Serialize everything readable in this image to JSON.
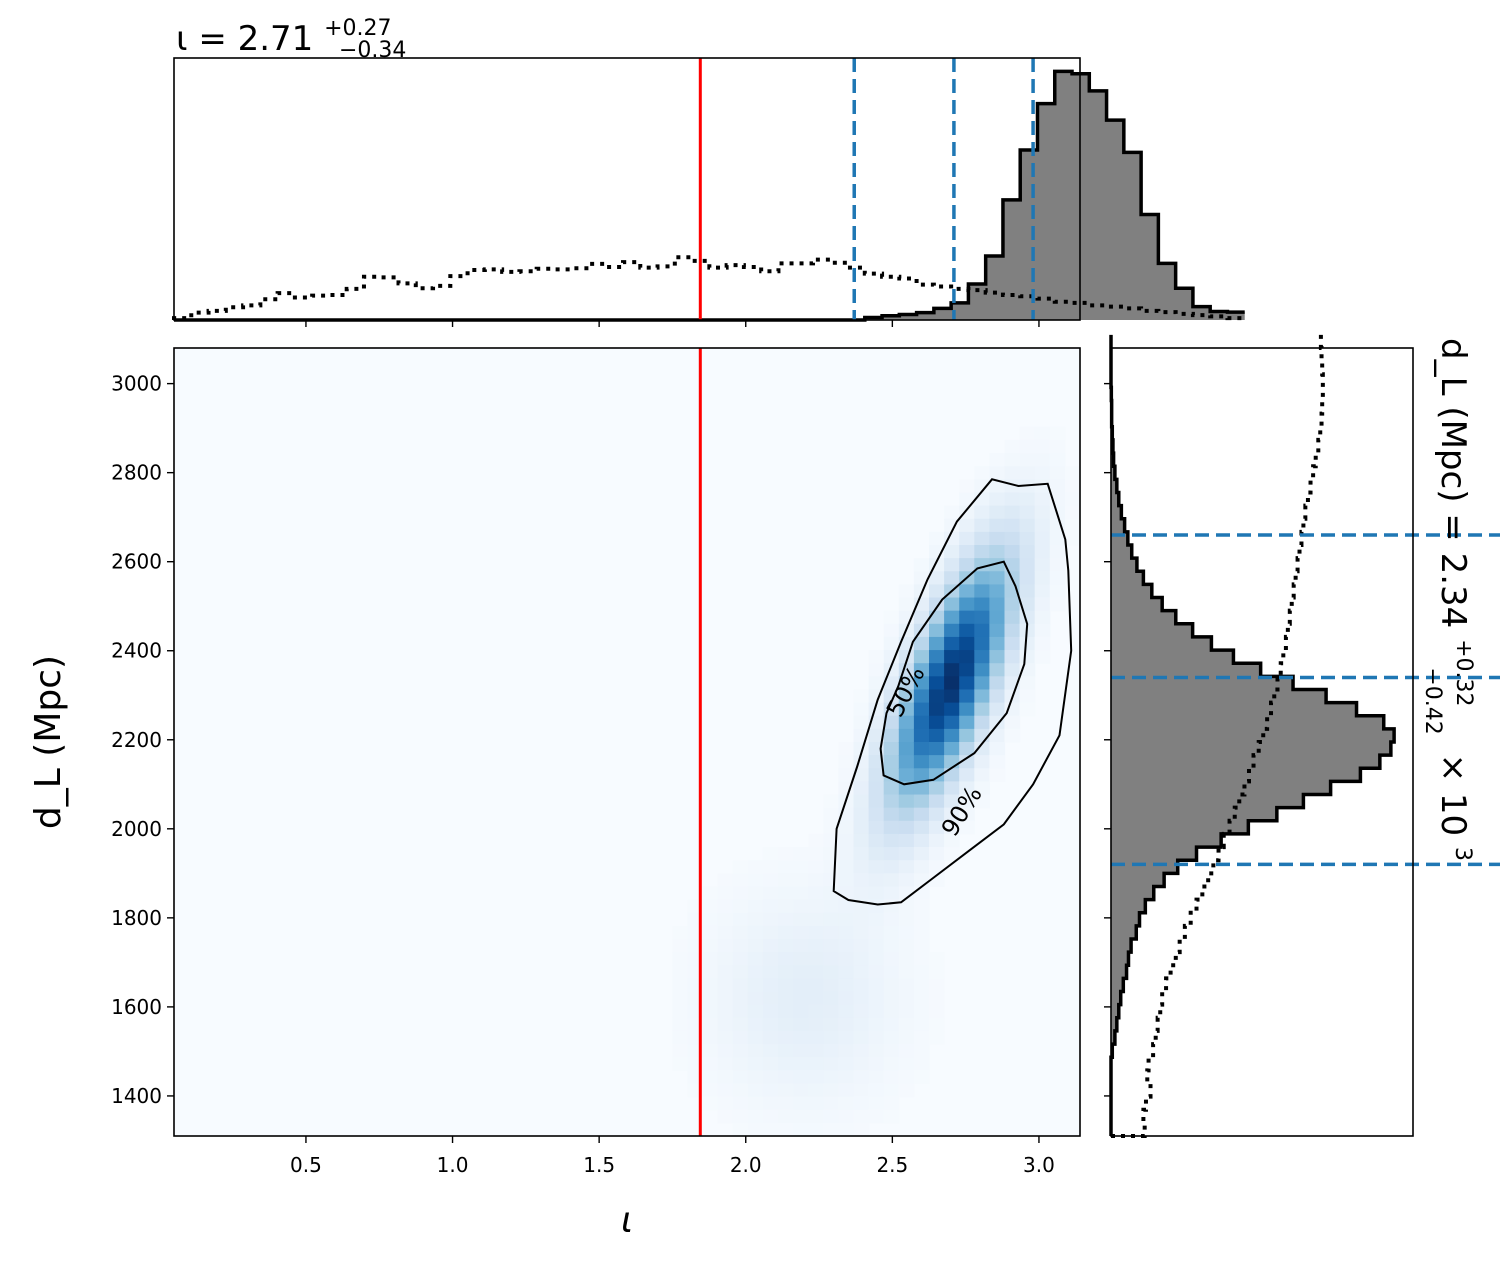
{
  "chart_data": [
    {
      "type": "histogram",
      "panel": "top-marginal",
      "title": {
        "main": "ι = 2.71",
        "sup": "+0.27",
        "sub": "−0.34"
      },
      "xlim": [
        0.05,
        3.14
      ],
      "x_ticks": [
        0.5,
        1.0,
        1.5,
        2.0,
        2.5,
        3.0
      ],
      "bins": {
        "start": 0.05,
        "width": 0.0589
      },
      "series": [
        {
          "name": "",
          "style": "filled-step",
          "color": "#808080",
          "edge": "#000000",
          "counts": [
            0,
            0,
            0,
            0,
            0,
            0,
            0,
            0,
            0,
            0,
            0,
            0,
            0,
            0,
            0,
            0,
            0,
            0,
            0,
            0,
            0,
            0,
            0,
            0,
            0,
            0,
            0,
            0,
            0,
            0,
            0,
            0,
            0,
            0,
            0,
            0,
            0,
            0,
            0,
            0,
            0.4,
            0.7,
            0.9,
            1.2,
            1.9,
            2.8,
            5.9,
            10.5,
            19.7,
            27.9,
            35.5,
            40.8,
            40.4,
            37.6,
            32.8,
            27.5,
            17.3,
            9.3,
            5.2,
            2.2,
            1.4,
            1.3
          ]
        },
        {
          "name": "",
          "style": "dotted-step",
          "color": "#000000",
          "counts": [
            0.3,
            1.2,
            1.5,
            2.1,
            2.4,
            3.4,
            4.4,
            3.7,
            4.0,
            4.1,
            5.1,
            7.1,
            7.0,
            6.0,
            5.2,
            5.6,
            7.2,
            8.2,
            8.3,
            7.9,
            8.0,
            8.4,
            8.3,
            8.5,
            9.2,
            8.7,
            9.5,
            8.6,
            8.8,
            10.3,
            9.7,
            8.6,
            9.0,
            8.7,
            8.0,
            9.3,
            9.3,
            9.9,
            9.4,
            8.6,
            7.6,
            7.1,
            6.8,
            5.8,
            5.5,
            5.1,
            4.9,
            4.5,
            4.1,
            3.9,
            3.5,
            3.0,
            2.8,
            2.4,
            2.2,
            1.9,
            1.5,
            1.3,
            1.0,
            0.8,
            0.6,
            0.3
          ]
        }
      ],
      "truth_value": 1.845,
      "truth_color": "#ff0000",
      "quantile_lines": [
        2.37,
        2.71,
        2.98
      ],
      "quantile_color": "#1f77b4"
    },
    {
      "type": "heatmap",
      "panel": "joint",
      "xlabel": "ι",
      "ylabel": "d_L (Mpc)",
      "xlim": [
        0.05,
        3.14
      ],
      "ylim": [
        1310,
        3080
      ],
      "x_ticks": [
        0.5,
        1.0,
        1.5,
        2.0,
        2.5,
        3.0
      ],
      "y_ticks": [
        1400,
        1600,
        1800,
        2000,
        2200,
        2400,
        2600,
        2800,
        3000
      ],
      "colormap": "Blues",
      "density_model": {
        "mean_x": 2.7,
        "mean_y": 2330,
        "sigma_x": 0.14,
        "sigma_y": 190,
        "rho": 0.72,
        "tail_mean_x": 2.2,
        "tail_mean_y": 1620,
        "tail_weight": 0.1
      },
      "contours": [
        {
          "label": "50%",
          "points": [
            [
              2.48,
              2260
            ],
            [
              2.52,
              2320
            ],
            [
              2.57,
              2420
            ],
            [
              2.67,
              2515
            ],
            [
              2.79,
              2585
            ],
            [
              2.88,
              2600
            ],
            [
              2.92,
              2545
            ],
            [
              2.96,
              2460
            ],
            [
              2.95,
              2370
            ],
            [
              2.89,
              2260
            ],
            [
              2.78,
              2170
            ],
            [
              2.64,
              2110
            ],
            [
              2.54,
              2100
            ],
            [
              2.47,
              2120
            ],
            [
              2.46,
              2180
            ]
          ]
        },
        {
          "label": "90%",
          "points": [
            [
              2.3,
              1860
            ],
            [
              2.31,
              2000
            ],
            [
              2.38,
              2140
            ],
            [
              2.45,
              2290
            ],
            [
              2.53,
              2420
            ],
            [
              2.62,
              2560
            ],
            [
              2.72,
              2690
            ],
            [
              2.84,
              2785
            ],
            [
              2.93,
              2770
            ],
            [
              3.03,
              2775
            ],
            [
              3.09,
              2650
            ],
            [
              3.1,
              2580
            ],
            [
              3.11,
              2400
            ],
            [
              3.07,
              2210
            ],
            [
              2.98,
              2100
            ],
            [
              2.88,
              2010
            ],
            [
              2.76,
              1950
            ],
            [
              2.63,
              1885
            ],
            [
              2.53,
              1835
            ],
            [
              2.45,
              1830
            ],
            [
              2.35,
              1840
            ]
          ]
        }
      ],
      "contour_label_values": [
        "50%",
        "90%"
      ],
      "truth_value": 1.845,
      "truth_color": "#ff0000"
    },
    {
      "type": "histogram",
      "panel": "right-marginal",
      "orientation": "horizontal",
      "side_label": {
        "main": "d_L (Mpc) = 2.34",
        "sup": "+0.32",
        "sub": "−0.42",
        "suffix": "× 10",
        "exp": "3"
      },
      "ylim": [
        1310,
        3080
      ],
      "bins": {
        "start": 1310,
        "width": 29.5
      },
      "series": [
        {
          "name": "",
          "style": "filled-step",
          "color": "#808080",
          "edge": "#000000",
          "counts": [
            0,
            0,
            0,
            0,
            0,
            0,
            0.2,
            0.6,
            0.9,
            1.2,
            1.5,
            1.9,
            2.4,
            2.7,
            3.1,
            3.9,
            4.4,
            5.3,
            6.6,
            8.2,
            10.3,
            13.2,
            17.0,
            21.2,
            25.6,
            29.7,
            33.9,
            38.5,
            41.5,
            43.2,
            43.7,
            42.1,
            37.9,
            33.2,
            28.1,
            23.1,
            18.9,
            15.5,
            12.6,
            10.0,
            7.9,
            6.3,
            5.0,
            4.0,
            3.2,
            2.6,
            2.1,
            1.6,
            1.2,
            0.9,
            0.6,
            0.4,
            0.3,
            0.2,
            0.1,
            0.1,
            0.05,
            0,
            0,
            0,
            0
          ]
        },
        {
          "name": "",
          "style": "dotted-step",
          "color": "#000000",
          "counts": [
            5.2,
            5.0,
            5.4,
            6.1,
            5.6,
            5.8,
            6.5,
            6.9,
            7.2,
            7.6,
            7.9,
            8.5,
            9.2,
            10.0,
            10.6,
            11.4,
            12.3,
            13.2,
            14.1,
            15.0,
            15.8,
            16.6,
            17.4,
            18.3,
            19.1,
            19.8,
            20.6,
            21.3,
            22.0,
            22.8,
            23.5,
            24.1,
            24.7,
            25.2,
            25.7,
            26.2,
            26.6,
            27.0,
            27.3,
            27.6,
            27.9,
            28.2,
            28.5,
            28.8,
            29.1,
            29.4,
            29.7,
            30.0,
            30.4,
            30.8,
            31.2,
            31.6,
            32.0,
            32.3,
            32.5,
            32.6,
            32.7,
            32.7,
            32.6,
            32.5,
            32.4
          ]
        }
      ],
      "quantile_lines": [
        1920,
        2340,
        2660
      ],
      "quantile_color": "#1f77b4"
    }
  ]
}
